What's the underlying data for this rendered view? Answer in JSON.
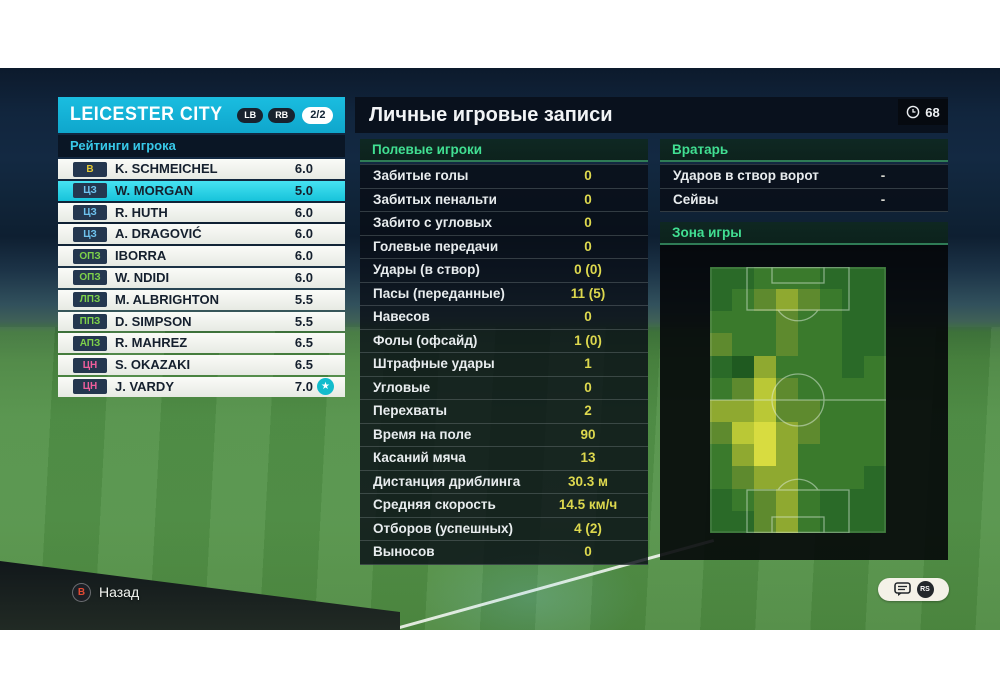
{
  "team_panel": {
    "team_name": "LEICESTER CITY",
    "badge_lb": "LB",
    "badge_rb": "RB",
    "page_indicator": "2/2",
    "ratings_header": "Рейтинги игрока",
    "players": [
      {
        "pos": "В",
        "pos_color": "#e3c935",
        "name": "K. SCHMEICHEL",
        "rating": "6.0",
        "selected": false,
        "star": false
      },
      {
        "pos": "ЦЗ",
        "pos_color": "#6fc3ef",
        "name": "W. MORGAN",
        "rating": "5.0",
        "selected": true,
        "star": false
      },
      {
        "pos": "ЦЗ",
        "pos_color": "#6fc3ef",
        "name": "R. HUTH",
        "rating": "6.0",
        "selected": false,
        "star": false
      },
      {
        "pos": "ЦЗ",
        "pos_color": "#6fc3ef",
        "name": "A. DRAGOVIĆ",
        "rating": "6.0",
        "selected": false,
        "star": false
      },
      {
        "pos": "ОПЗ",
        "pos_color": "#7ed24a",
        "name": "IBORRA",
        "rating": "6.0",
        "selected": false,
        "star": false
      },
      {
        "pos": "ОПЗ",
        "pos_color": "#7ed24a",
        "name": "W. NDIDI",
        "rating": "6.0",
        "selected": false,
        "star": false
      },
      {
        "pos": "ЛПЗ",
        "pos_color": "#7ed24a",
        "name": "M. ALBRIGHTON",
        "rating": "5.5",
        "selected": false,
        "star": false
      },
      {
        "pos": "ППЗ",
        "pos_color": "#7ed24a",
        "name": "D. SIMPSON",
        "rating": "5.5",
        "selected": false,
        "star": false
      },
      {
        "pos": "АПЗ",
        "pos_color": "#7ed24a",
        "name": "R. MAHREZ",
        "rating": "6.5",
        "selected": false,
        "star": false
      },
      {
        "pos": "ЦН",
        "pos_color": "#ef5e9c",
        "name": "S. OKAZAKI",
        "rating": "6.5",
        "selected": false,
        "star": false
      },
      {
        "pos": "ЦН",
        "pos_color": "#ef5e9c",
        "name": "J. VARDY",
        "rating": "7.0",
        "selected": false,
        "star": true
      }
    ]
  },
  "records_panel": {
    "title": "Личные игровые записи",
    "clock": "68",
    "field_players_header": "Полевые игроки",
    "field_stats": [
      {
        "label": "Забитые голы",
        "value": "0"
      },
      {
        "label": "Забитых пенальти",
        "value": "0"
      },
      {
        "label": "Забито с угловых",
        "value": "0"
      },
      {
        "label": "Голевые передачи",
        "value": "0"
      },
      {
        "label": "Удары (в створ)",
        "value": "0 (0)"
      },
      {
        "label": "Пасы (переданные)",
        "value": "11 (5)"
      },
      {
        "label": "Навесов",
        "value": "0"
      },
      {
        "label": "Фолы (офсайд)",
        "value": "1 (0)"
      },
      {
        "label": "Штрафные удары",
        "value": "1"
      },
      {
        "label": "Угловые",
        "value": "0"
      },
      {
        "label": "Перехваты",
        "value": "2"
      },
      {
        "label": "Время на поле",
        "value": "90"
      },
      {
        "label": "Касаний мяча",
        "value": "13"
      },
      {
        "label": "Дистанция дриблинга",
        "value": "30.3 м"
      },
      {
        "label": "Средняя скорость",
        "value": "14.5 км/ч"
      },
      {
        "label": "Отборов (успешных)",
        "value": "4 (2)"
      },
      {
        "label": "Выносов",
        "value": "0"
      }
    ],
    "goalkeeper_header": "Вратарь",
    "gk_stats": [
      {
        "label": "Ударов в створ ворот",
        "value": "-"
      },
      {
        "label": "Сейвы",
        "value": "-"
      }
    ],
    "zone_header": "Зона игры"
  },
  "heatmap": {
    "cols": 8,
    "rows": 12,
    "palette": [
      "#1f5a20",
      "#2a6a28",
      "#3a7a2c",
      "#5e8a2e",
      "#8fa930",
      "#bac836",
      "#d8dc40"
    ],
    "grid": [
      [
        1,
        1,
        2,
        2,
        2,
        1,
        1,
        1
      ],
      [
        1,
        2,
        3,
        4,
        3,
        2,
        1,
        1
      ],
      [
        2,
        2,
        2,
        3,
        2,
        2,
        1,
        1
      ],
      [
        3,
        2,
        2,
        3,
        2,
        2,
        1,
        1
      ],
      [
        1,
        0,
        4,
        2,
        2,
        2,
        1,
        2
      ],
      [
        2,
        3,
        5,
        3,
        2,
        2,
        2,
        2
      ],
      [
        4,
        4,
        5,
        3,
        3,
        2,
        2,
        2
      ],
      [
        3,
        5,
        6,
        4,
        3,
        2,
        2,
        2
      ],
      [
        2,
        4,
        6,
        4,
        2,
        2,
        2,
        2
      ],
      [
        2,
        3,
        4,
        4,
        2,
        2,
        2,
        1
      ],
      [
        1,
        2,
        3,
        4,
        2,
        1,
        1,
        1
      ],
      [
        1,
        1,
        3,
        4,
        2,
        1,
        1,
        1
      ]
    ]
  },
  "footer": {
    "back_button": "B",
    "back_label": "Назад",
    "rs_label": "RS"
  },
  "colors": {
    "accent_cyan": "#17c3da",
    "header_green": "#41df92",
    "value_yellow": "#ddd84e",
    "team_bar": "#14b2d6"
  }
}
